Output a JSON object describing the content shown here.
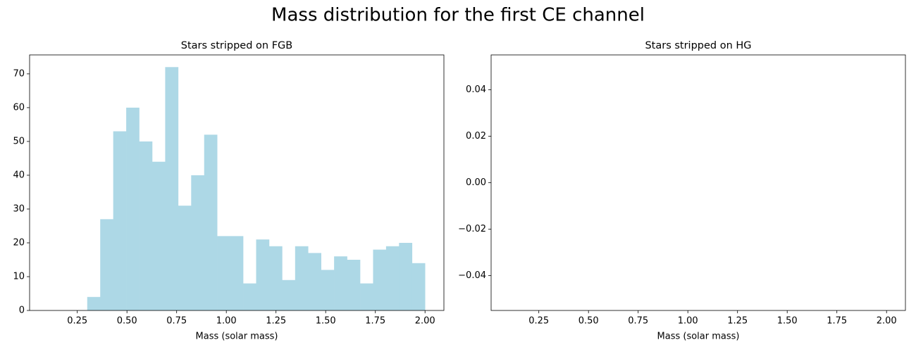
{
  "title": "Mass distribution for the first CE channel",
  "chart_data": [
    {
      "type": "histogram",
      "title": "Stars stripped on FGB",
      "x_label": "Mass (solar mass)",
      "color": "#add8e6",
      "bins": [
        0.3,
        0.3654,
        0.4308,
        0.4962,
        0.5615,
        0.6269,
        0.6923,
        0.7577,
        0.8231,
        0.8885,
        0.9538,
        1.0192,
        1.0846,
        1.15,
        1.2154,
        1.2808,
        1.3462,
        1.4115,
        1.4769,
        1.5423,
        1.6077,
        1.6731,
        1.7385,
        1.8038,
        1.8692,
        1.9346,
        2.0
      ],
      "counts": [
        4,
        27,
        53,
        60,
        50,
        44,
        72,
        31,
        40,
        52,
        22,
        22,
        8,
        21,
        19,
        9,
        19,
        17,
        12,
        16,
        15,
        8,
        18,
        19,
        20,
        14
      ],
      "xlim": [
        0.01,
        2.095
      ],
      "ylim": [
        0,
        75.6
      ],
      "xticks": [
        0.25,
        {
          "value": 0.5,
          "label": "0.50"
        },
        0.75,
        {
          "value": 1,
          "label": "1.00"
        },
        1.25,
        {
          "value": 1.5,
          "label": "1.50"
        },
        1.75,
        {
          "value": 2,
          "label": "2.00"
        }
      ],
      "yticks": [
        0,
        10,
        20,
        30,
        40,
        50,
        60,
        70
      ]
    },
    {
      "type": "histogram",
      "title": "Stars stripped on HG",
      "x_label": "Mass (solar mass)",
      "color": "#add8e6",
      "xlim": [
        0.01,
        2.095
      ],
      "ylim": [
        -0.055,
        0.055
      ],
      "xticks": [
        0.25,
        {
          "value": 0.5,
          "label": "0.50"
        },
        0.75,
        {
          "value": 1,
          "label": "1.00"
        },
        1.25,
        {
          "value": 1.5,
          "label": "1.50"
        },
        1.75,
        {
          "value": 2,
          "label": "2.00"
        }
      ],
      "yticks": [
        {
          "value": -0.04,
          "label": "−0.04"
        },
        {
          "value": -0.02,
          "label": "−0.02"
        },
        {
          "value": 0,
          "label": "0.00"
        },
        0.02,
        0.04
      ]
    }
  ]
}
